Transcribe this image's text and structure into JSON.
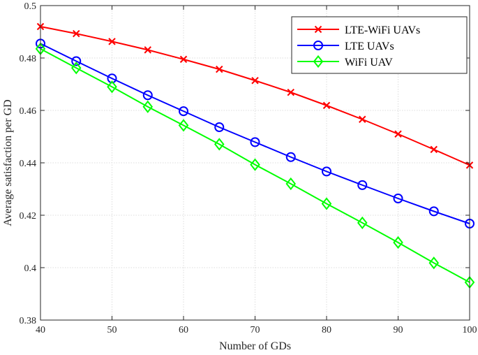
{
  "chart_data": {
    "type": "line",
    "title": "",
    "xlabel": "Number of GDs",
    "ylabel": "Average satisfaction per GD",
    "xlim": [
      40,
      100
    ],
    "ylim": [
      0.38,
      0.5
    ],
    "xticks": [
      40,
      50,
      60,
      70,
      80,
      90,
      100
    ],
    "xtick_labels": [
      "40",
      "50",
      "60",
      "70",
      "80",
      "90",
      "100"
    ],
    "yticks": [
      0.38,
      0.4,
      0.42,
      0.44,
      0.46,
      0.48,
      0.5
    ],
    "ytick_labels": [
      "0.38",
      "0.4",
      "0.42",
      "0.44",
      "0.46",
      "0.48",
      "0.5"
    ],
    "grid": true,
    "legend_position": "top-right",
    "x": [
      40,
      45,
      50,
      55,
      60,
      65,
      70,
      75,
      80,
      85,
      90,
      95,
      100
    ],
    "series": [
      {
        "name": "LTE-WiFi UAVs",
        "color": "#ff0000",
        "marker": "x",
        "values": [
          0.492,
          0.4893,
          0.4863,
          0.4831,
          0.4795,
          0.4757,
          0.4714,
          0.4669,
          0.4619,
          0.4566,
          0.451,
          0.4451,
          0.4391
        ]
      },
      {
        "name": "LTE UAVs",
        "color": "#0000ff",
        "marker": "circle",
        "values": [
          0.4855,
          0.4788,
          0.4722,
          0.4658,
          0.4597,
          0.4536,
          0.4479,
          0.4422,
          0.4367,
          0.4315,
          0.4264,
          0.4215,
          0.4168
        ]
      },
      {
        "name": "WiFi UAV",
        "color": "#00ff00",
        "marker": "diamond",
        "values": [
          0.4835,
          0.4762,
          0.469,
          0.4614,
          0.4543,
          0.4471,
          0.4393,
          0.432,
          0.4244,
          0.4171,
          0.4096,
          0.4018,
          0.3944
        ]
      }
    ]
  }
}
